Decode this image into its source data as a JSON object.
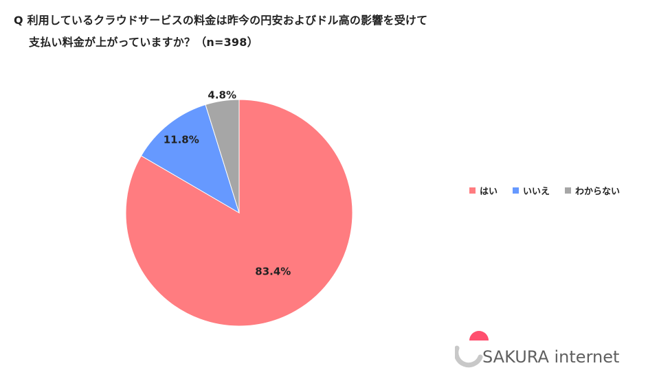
{
  "title": {
    "line1": "Q 利用しているクラウドサービスの料金は昨今の円安およびドル高の影響を受けて",
    "line2": "支払い料金が上がっていますか？（n=398）"
  },
  "chart_data": {
    "type": "pie",
    "n": 398,
    "slices": [
      {
        "name": "はい",
        "value": 83.4,
        "label": "83.4%",
        "color": "#ff7c80"
      },
      {
        "name": "いいえ",
        "value": 11.8,
        "label": "11.8%",
        "color": "#6699ff"
      },
      {
        "name": "わからない",
        "value": 4.8,
        "label": "4.8%",
        "color": "#a6a6a6"
      }
    ],
    "start": "12 o'clock",
    "direction": "clockwise",
    "legend_position": "right"
  },
  "logo": {
    "text": "SAKURA internet"
  }
}
